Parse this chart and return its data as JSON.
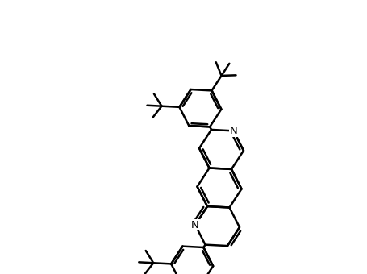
{
  "bg_color": "#ffffff",
  "line_color": "#000000",
  "lw": 1.8,
  "fig_w": 4.56,
  "fig_h": 3.4,
  "dpi": 100,
  "N_fontsize": 9.5
}
